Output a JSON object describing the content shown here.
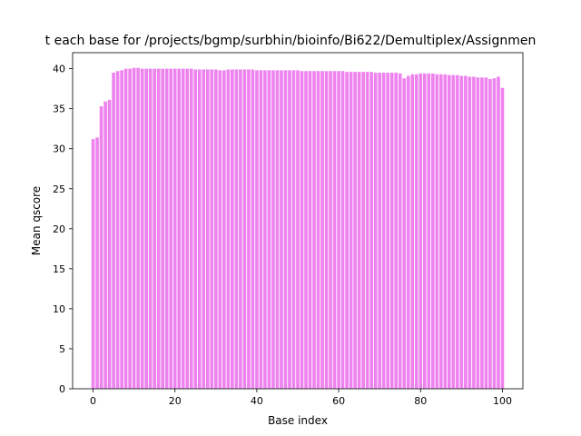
{
  "chart_data": {
    "type": "bar",
    "title": "t each base for /projects/bgmp/surbhin/bioinfo/Bi622/Demultiplex/Assignmen",
    "xlabel": "Base index",
    "ylabel": "Mean qscore",
    "xlim": [
      -5,
      105
    ],
    "ylim": [
      0,
      42
    ],
    "xticks": [
      0,
      20,
      40,
      60,
      80,
      100
    ],
    "yticks": [
      0,
      5,
      10,
      15,
      20,
      25,
      30,
      35,
      40
    ],
    "grid": false,
    "bar_color": "#ee82ee",
    "x": [
      0,
      1,
      2,
      3,
      4,
      5,
      6,
      7,
      8,
      9,
      10,
      11,
      12,
      13,
      14,
      15,
      16,
      17,
      18,
      19,
      20,
      21,
      22,
      23,
      24,
      25,
      26,
      27,
      28,
      29,
      30,
      31,
      32,
      33,
      34,
      35,
      36,
      37,
      38,
      39,
      40,
      41,
      42,
      43,
      44,
      45,
      46,
      47,
      48,
      49,
      50,
      51,
      52,
      53,
      54,
      55,
      56,
      57,
      58,
      59,
      60,
      61,
      62,
      63,
      64,
      65,
      66,
      67,
      68,
      69,
      70,
      71,
      72,
      73,
      74,
      75,
      76,
      77,
      78,
      79,
      80,
      81,
      82,
      83,
      84,
      85,
      86,
      87,
      88,
      89,
      90,
      91,
      92,
      93,
      94,
      95,
      96,
      97,
      98,
      99,
      100
    ],
    "values": [
      31.2,
      31.4,
      35.3,
      35.9,
      36.1,
      39.5,
      39.7,
      39.8,
      40.0,
      40.0,
      40.1,
      40.1,
      40.0,
      40.0,
      40.0,
      40.0,
      40.0,
      40.0,
      40.0,
      40.0,
      40.0,
      40.0,
      40.0,
      40.0,
      40.0,
      39.9,
      39.9,
      39.9,
      39.9,
      39.9,
      39.9,
      39.8,
      39.8,
      39.9,
      39.9,
      39.9,
      39.9,
      39.9,
      39.9,
      39.9,
      39.8,
      39.8,
      39.8,
      39.8,
      39.8,
      39.8,
      39.8,
      39.8,
      39.8,
      39.8,
      39.8,
      39.7,
      39.7,
      39.7,
      39.7,
      39.7,
      39.7,
      39.7,
      39.7,
      39.7,
      39.7,
      39.7,
      39.6,
      39.6,
      39.6,
      39.6,
      39.6,
      39.6,
      39.6,
      39.5,
      39.5,
      39.5,
      39.5,
      39.5,
      39.5,
      39.4,
      38.8,
      39.1,
      39.3,
      39.3,
      39.4,
      39.4,
      39.4,
      39.4,
      39.3,
      39.3,
      39.3,
      39.2,
      39.2,
      39.2,
      39.1,
      39.1,
      39.0,
      39.0,
      38.9,
      38.9,
      38.9,
      38.7,
      38.8,
      39.0,
      37.6
    ]
  }
}
